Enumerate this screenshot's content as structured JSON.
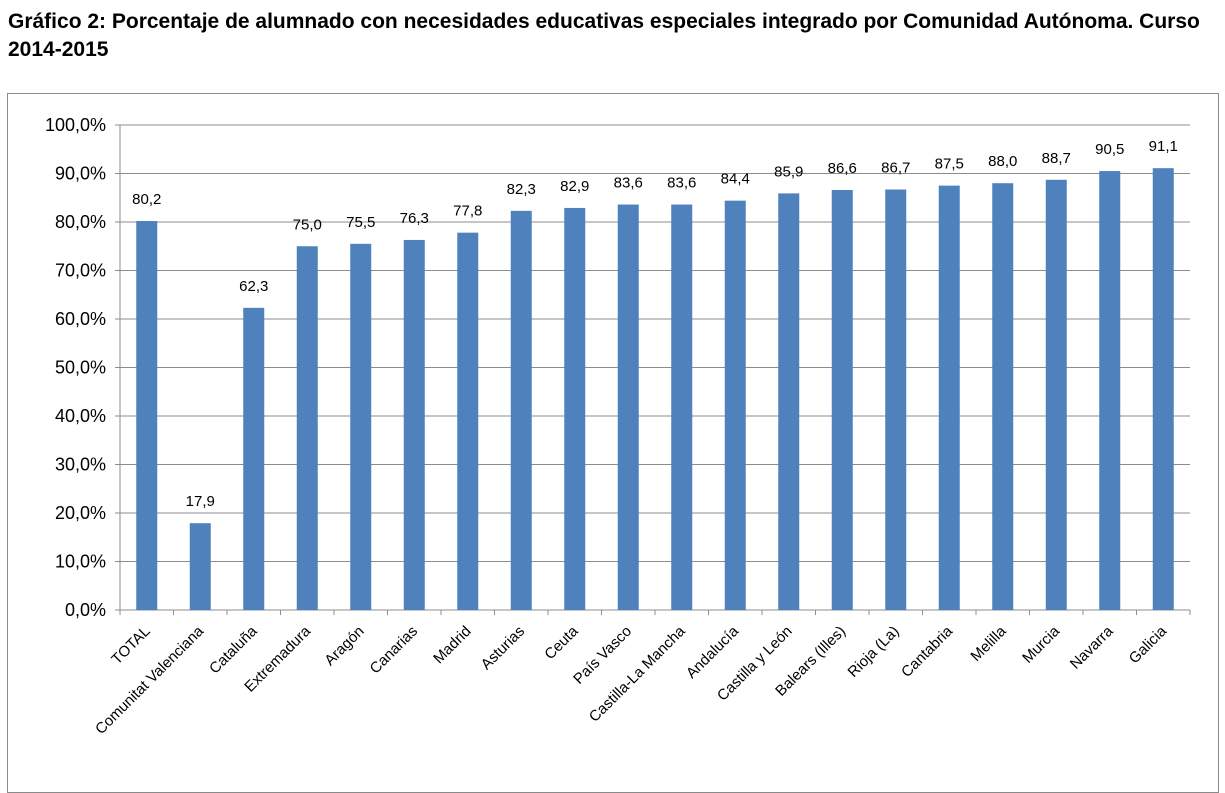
{
  "title": "Gráfico 2: Porcentaje de alumnado con necesidades educativas especiales integrado por Comunidad Autónoma. Curso 2014-2015",
  "colors": {
    "bar": "#4f81bd",
    "grid": "#8c8c8c",
    "axis": "#8c8c8c"
  },
  "chart_data": {
    "type": "bar",
    "title": "Gráfico 2: Porcentaje de alumnado con necesidades educativas especiales integrado por Comunidad Autónoma. Curso 2014-2015",
    "xlabel": "",
    "ylabel": "",
    "ylim": [
      0,
      100
    ],
    "y_ticks": [
      "0,0%",
      "10,0%",
      "20,0%",
      "30,0%",
      "40,0%",
      "50,0%",
      "60,0%",
      "70,0%",
      "80,0%",
      "90,0%",
      "100,0%"
    ],
    "grid": true,
    "legend": "none",
    "categories": [
      "TOTAL",
      "Comunitat Valenciana",
      "Cataluña",
      "Extremadura",
      "Aragón",
      "Canarias",
      "Madrid",
      "Asturias",
      "Ceuta",
      "País Vasco",
      "Castilla-La Mancha",
      "Andalucía",
      "Castilla y León",
      "Balears (Illes)",
      "Rioja (La)",
      "Cantabria",
      "Melilla",
      "Murcia",
      "Navarra",
      "Galicia"
    ],
    "values": [
      80.2,
      17.9,
      62.3,
      75.0,
      75.5,
      76.3,
      77.8,
      82.3,
      82.9,
      83.6,
      83.6,
      84.4,
      85.9,
      86.6,
      86.7,
      87.5,
      88.0,
      88.7,
      90.5,
      91.1
    ],
    "value_labels": [
      "80,2",
      "17,9",
      "62,3",
      "75,0",
      "75,5",
      "76,3",
      "77,8",
      "82,3",
      "82,9",
      "83,6",
      "83,6",
      "84,4",
      "85,9",
      "86,6",
      "86,7",
      "87,5",
      "88,0",
      "88,7",
      "90,5",
      "91,1"
    ]
  }
}
